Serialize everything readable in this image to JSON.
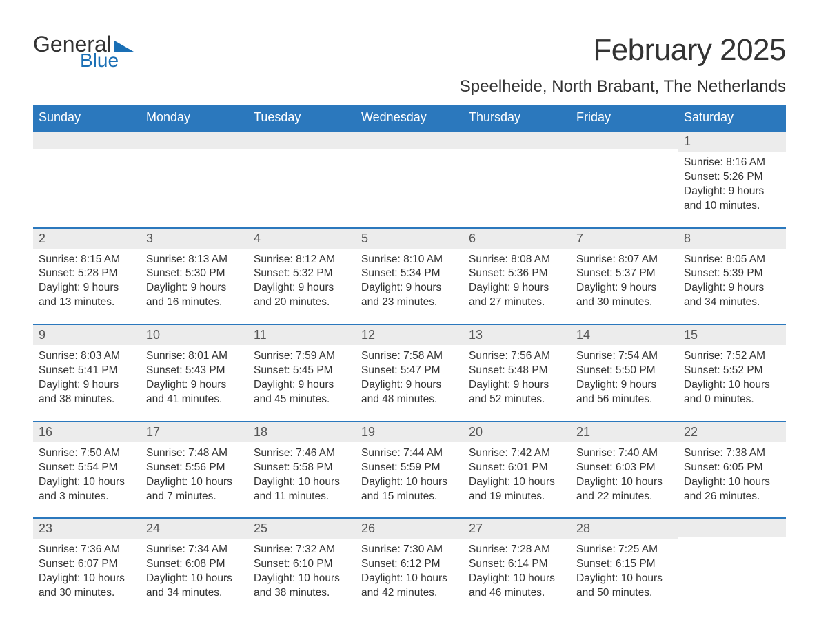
{
  "brand": {
    "word1": "General",
    "word2": "Blue",
    "logo_triangle_color": "#1a6fb5",
    "text_color_dark": "#333333",
    "text_color_blue": "#1a6fb5"
  },
  "title": "February 2025",
  "location": "Speelheide, North Brabant, The Netherlands",
  "colors": {
    "header_bg": "#2b78bd",
    "header_text": "#ffffff",
    "daynum_bg": "#ececec",
    "row_divider": "#2b78bd",
    "body_text": "#333333",
    "background": "#ffffff"
  },
  "fonts": {
    "family": "Arial",
    "title_size_pt": 33,
    "location_size_pt": 18,
    "weekday_size_pt": 14,
    "daynum_size_pt": 14,
    "detail_size_pt": 12
  },
  "weekdays": [
    "Sunday",
    "Monday",
    "Tuesday",
    "Wednesday",
    "Thursday",
    "Friday",
    "Saturday"
  ],
  "weeks": [
    [
      {
        "day": "",
        "sunrise": "",
        "sunset": "",
        "daylight1": "",
        "daylight2": ""
      },
      {
        "day": "",
        "sunrise": "",
        "sunset": "",
        "daylight1": "",
        "daylight2": ""
      },
      {
        "day": "",
        "sunrise": "",
        "sunset": "",
        "daylight1": "",
        "daylight2": ""
      },
      {
        "day": "",
        "sunrise": "",
        "sunset": "",
        "daylight1": "",
        "daylight2": ""
      },
      {
        "day": "",
        "sunrise": "",
        "sunset": "",
        "daylight1": "",
        "daylight2": ""
      },
      {
        "day": "",
        "sunrise": "",
        "sunset": "",
        "daylight1": "",
        "daylight2": ""
      },
      {
        "day": "1",
        "sunrise": "Sunrise: 8:16 AM",
        "sunset": "Sunset: 5:26 PM",
        "daylight1": "Daylight: 9 hours",
        "daylight2": "and 10 minutes."
      }
    ],
    [
      {
        "day": "2",
        "sunrise": "Sunrise: 8:15 AM",
        "sunset": "Sunset: 5:28 PM",
        "daylight1": "Daylight: 9 hours",
        "daylight2": "and 13 minutes."
      },
      {
        "day": "3",
        "sunrise": "Sunrise: 8:13 AM",
        "sunset": "Sunset: 5:30 PM",
        "daylight1": "Daylight: 9 hours",
        "daylight2": "and 16 minutes."
      },
      {
        "day": "4",
        "sunrise": "Sunrise: 8:12 AM",
        "sunset": "Sunset: 5:32 PM",
        "daylight1": "Daylight: 9 hours",
        "daylight2": "and 20 minutes."
      },
      {
        "day": "5",
        "sunrise": "Sunrise: 8:10 AM",
        "sunset": "Sunset: 5:34 PM",
        "daylight1": "Daylight: 9 hours",
        "daylight2": "and 23 minutes."
      },
      {
        "day": "6",
        "sunrise": "Sunrise: 8:08 AM",
        "sunset": "Sunset: 5:36 PM",
        "daylight1": "Daylight: 9 hours",
        "daylight2": "and 27 minutes."
      },
      {
        "day": "7",
        "sunrise": "Sunrise: 8:07 AM",
        "sunset": "Sunset: 5:37 PM",
        "daylight1": "Daylight: 9 hours",
        "daylight2": "and 30 minutes."
      },
      {
        "day": "8",
        "sunrise": "Sunrise: 8:05 AM",
        "sunset": "Sunset: 5:39 PM",
        "daylight1": "Daylight: 9 hours",
        "daylight2": "and 34 minutes."
      }
    ],
    [
      {
        "day": "9",
        "sunrise": "Sunrise: 8:03 AM",
        "sunset": "Sunset: 5:41 PM",
        "daylight1": "Daylight: 9 hours",
        "daylight2": "and 38 minutes."
      },
      {
        "day": "10",
        "sunrise": "Sunrise: 8:01 AM",
        "sunset": "Sunset: 5:43 PM",
        "daylight1": "Daylight: 9 hours",
        "daylight2": "and 41 minutes."
      },
      {
        "day": "11",
        "sunrise": "Sunrise: 7:59 AM",
        "sunset": "Sunset: 5:45 PM",
        "daylight1": "Daylight: 9 hours",
        "daylight2": "and 45 minutes."
      },
      {
        "day": "12",
        "sunrise": "Sunrise: 7:58 AM",
        "sunset": "Sunset: 5:47 PM",
        "daylight1": "Daylight: 9 hours",
        "daylight2": "and 48 minutes."
      },
      {
        "day": "13",
        "sunrise": "Sunrise: 7:56 AM",
        "sunset": "Sunset: 5:48 PM",
        "daylight1": "Daylight: 9 hours",
        "daylight2": "and 52 minutes."
      },
      {
        "day": "14",
        "sunrise": "Sunrise: 7:54 AM",
        "sunset": "Sunset: 5:50 PM",
        "daylight1": "Daylight: 9 hours",
        "daylight2": "and 56 minutes."
      },
      {
        "day": "15",
        "sunrise": "Sunrise: 7:52 AM",
        "sunset": "Sunset: 5:52 PM",
        "daylight1": "Daylight: 10 hours",
        "daylight2": "and 0 minutes."
      }
    ],
    [
      {
        "day": "16",
        "sunrise": "Sunrise: 7:50 AM",
        "sunset": "Sunset: 5:54 PM",
        "daylight1": "Daylight: 10 hours",
        "daylight2": "and 3 minutes."
      },
      {
        "day": "17",
        "sunrise": "Sunrise: 7:48 AM",
        "sunset": "Sunset: 5:56 PM",
        "daylight1": "Daylight: 10 hours",
        "daylight2": "and 7 minutes."
      },
      {
        "day": "18",
        "sunrise": "Sunrise: 7:46 AM",
        "sunset": "Sunset: 5:58 PM",
        "daylight1": "Daylight: 10 hours",
        "daylight2": "and 11 minutes."
      },
      {
        "day": "19",
        "sunrise": "Sunrise: 7:44 AM",
        "sunset": "Sunset: 5:59 PM",
        "daylight1": "Daylight: 10 hours",
        "daylight2": "and 15 minutes."
      },
      {
        "day": "20",
        "sunrise": "Sunrise: 7:42 AM",
        "sunset": "Sunset: 6:01 PM",
        "daylight1": "Daylight: 10 hours",
        "daylight2": "and 19 minutes."
      },
      {
        "day": "21",
        "sunrise": "Sunrise: 7:40 AM",
        "sunset": "Sunset: 6:03 PM",
        "daylight1": "Daylight: 10 hours",
        "daylight2": "and 22 minutes."
      },
      {
        "day": "22",
        "sunrise": "Sunrise: 7:38 AM",
        "sunset": "Sunset: 6:05 PM",
        "daylight1": "Daylight: 10 hours",
        "daylight2": "and 26 minutes."
      }
    ],
    [
      {
        "day": "23",
        "sunrise": "Sunrise: 7:36 AM",
        "sunset": "Sunset: 6:07 PM",
        "daylight1": "Daylight: 10 hours",
        "daylight2": "and 30 minutes."
      },
      {
        "day": "24",
        "sunrise": "Sunrise: 7:34 AM",
        "sunset": "Sunset: 6:08 PM",
        "daylight1": "Daylight: 10 hours",
        "daylight2": "and 34 minutes."
      },
      {
        "day": "25",
        "sunrise": "Sunrise: 7:32 AM",
        "sunset": "Sunset: 6:10 PM",
        "daylight1": "Daylight: 10 hours",
        "daylight2": "and 38 minutes."
      },
      {
        "day": "26",
        "sunrise": "Sunrise: 7:30 AM",
        "sunset": "Sunset: 6:12 PM",
        "daylight1": "Daylight: 10 hours",
        "daylight2": "and 42 minutes."
      },
      {
        "day": "27",
        "sunrise": "Sunrise: 7:28 AM",
        "sunset": "Sunset: 6:14 PM",
        "daylight1": "Daylight: 10 hours",
        "daylight2": "and 46 minutes."
      },
      {
        "day": "28",
        "sunrise": "Sunrise: 7:25 AM",
        "sunset": "Sunset: 6:15 PM",
        "daylight1": "Daylight: 10 hours",
        "daylight2": "and 50 minutes."
      },
      {
        "day": "",
        "sunrise": "",
        "sunset": "",
        "daylight1": "",
        "daylight2": ""
      }
    ]
  ]
}
